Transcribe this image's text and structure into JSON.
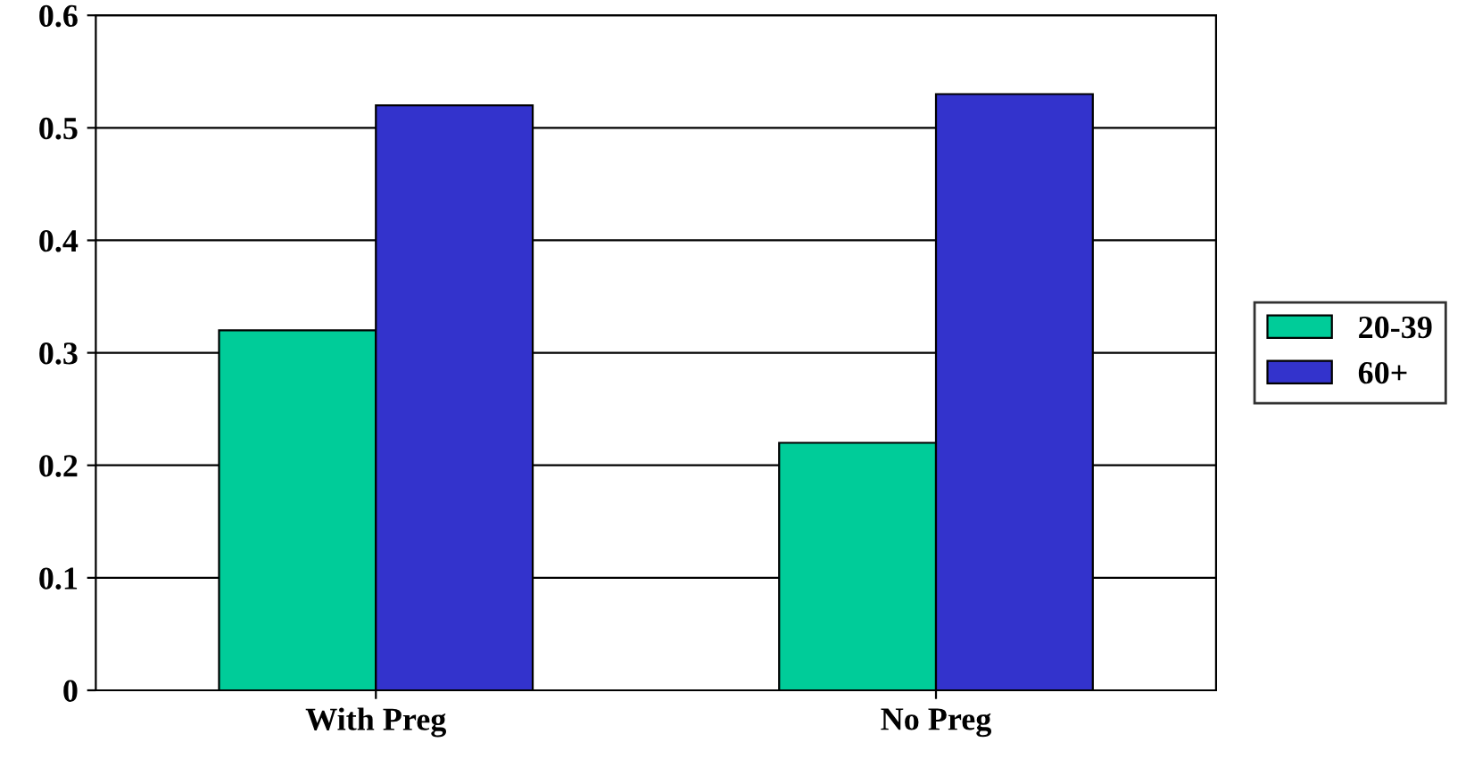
{
  "chart_data": {
    "type": "bar",
    "categories": [
      "With Preg",
      "No Preg"
    ],
    "series": [
      {
        "name": "20-39",
        "color": "#00cc99",
        "values": [
          0.32,
          0.22
        ]
      },
      {
        "name": "60+",
        "color": "#3333cc",
        "values": [
          0.52,
          0.53
        ]
      }
    ],
    "ylim": [
      0,
      0.6
    ],
    "yticks": [
      0,
      0.1,
      0.2,
      0.3,
      0.4,
      0.5,
      0.6
    ],
    "grid": "y",
    "legend": "right"
  }
}
